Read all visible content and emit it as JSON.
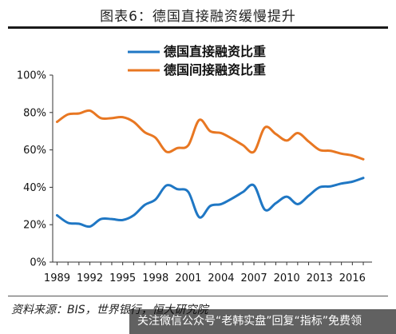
{
  "header": {
    "title": "图表6：德国直接融资缓慢提升"
  },
  "footer": {
    "source": "资料来源：BIS，世界银行，恒大研究院"
  },
  "watermark": {
    "text": "关注微信公众号“老韩实盘”回复“指标”免费领"
  },
  "colors": {
    "direct": "#1f77c4",
    "indirect": "#e87722"
  },
  "chart_data": {
    "type": "line",
    "title": "",
    "xlabel": "",
    "ylabel": "",
    "ylim": [
      0,
      100
    ],
    "xlim": [
      1988.6,
      2017.8
    ],
    "y_ticks": [
      0,
      20,
      40,
      60,
      80,
      100
    ],
    "y_tick_labels": [
      "0%",
      "20%",
      "40%",
      "60%",
      "80%",
      "100%"
    ],
    "x_ticks": [
      1989,
      1992,
      1995,
      1998,
      2001,
      2004,
      2007,
      2010,
      2013,
      2016
    ],
    "x_tick_labels": [
      "1989",
      "1992",
      "1995",
      "1998",
      "2001",
      "2004",
      "2007",
      "2010",
      "2013",
      "2016"
    ],
    "grid": false,
    "legend_position": "top-center",
    "x": [
      1989,
      1990,
      1991,
      1992,
      1993,
      1994,
      1995,
      1996,
      1997,
      1998,
      1999,
      2000,
      2001,
      2002,
      2003,
      2004,
      2005,
      2006,
      2007,
      2008,
      2009,
      2010,
      2011,
      2012,
      2013,
      2014,
      2015,
      2016,
      2017
    ],
    "series": [
      {
        "name": "德国直接融资比重",
        "color": "#1f77c4",
        "values": [
          25,
          21,
          20.5,
          19,
          23,
          23,
          22.5,
          25,
          30.5,
          33.5,
          41,
          39,
          37.5,
          24,
          30,
          31,
          34,
          37.5,
          41,
          28,
          31.5,
          35,
          31,
          35.5,
          40,
          40.5,
          42,
          43,
          45
        ]
      },
      {
        "name": "德国间接融资比重",
        "color": "#e87722",
        "values": [
          75,
          79,
          79.5,
          81,
          77,
          77,
          77.5,
          75,
          69.5,
          66.5,
          59,
          61,
          62.5,
          76,
          70,
          69,
          66,
          62.5,
          59,
          72,
          68.5,
          65,
          69,
          64.5,
          60,
          59.5,
          58,
          57,
          55
        ]
      }
    ]
  }
}
